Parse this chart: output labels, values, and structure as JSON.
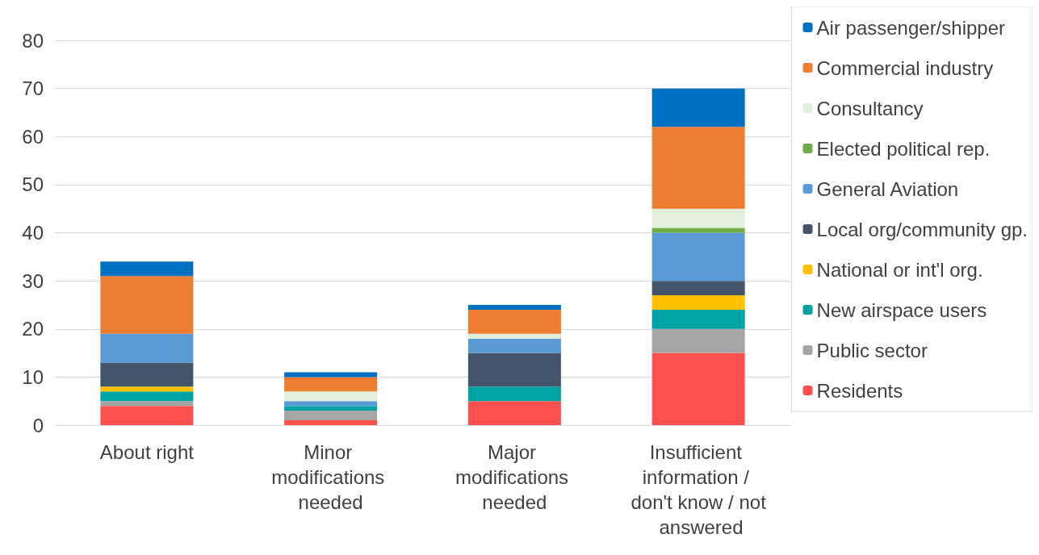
{
  "chart_data": {
    "type": "bar",
    "stacked": true,
    "categories": [
      "About right",
      "Minor modifications needed",
      "Major modifications needed",
      "Insufficient information / don't know / not answered"
    ],
    "series": [
      {
        "name": "Residents",
        "color": "#ff5050",
        "values": [
          4,
          1,
          5,
          15
        ]
      },
      {
        "name": "Public sector",
        "color": "#a5a5a5",
        "values": [
          1,
          2,
          0,
          5
        ]
      },
      {
        "name": "New airspace users",
        "color": "#00a3a3",
        "values": [
          2,
          1,
          3,
          4
        ]
      },
      {
        "name": "National or int'l org.",
        "color": "#ffc000",
        "values": [
          1,
          0,
          0,
          3
        ]
      },
      {
        "name": "Local org/community gp.",
        "color": "#44546a",
        "values": [
          5,
          0,
          7,
          3
        ]
      },
      {
        "name": "General Aviation",
        "color": "#5b9bd5",
        "values": [
          6,
          1,
          3,
          10
        ]
      },
      {
        "name": "Elected political rep.",
        "color": "#70ad47",
        "values": [
          0,
          0,
          0,
          1
        ]
      },
      {
        "name": "Consultancy",
        "color": "#e2efda",
        "values": [
          0,
          2,
          1,
          4
        ]
      },
      {
        "name": "Commercial industry",
        "color": "#ed7d31",
        "values": [
          12,
          3,
          5,
          17
        ]
      },
      {
        "name": "Air passenger/shipper",
        "color": "#0070c0",
        "values": [
          3,
          1,
          1,
          8
        ]
      }
    ],
    "ylim": [
      0,
      80
    ],
    "yticks": [
      0,
      10,
      20,
      30,
      40,
      50,
      60,
      70,
      80
    ],
    "grid": "y",
    "legend": "right"
  }
}
